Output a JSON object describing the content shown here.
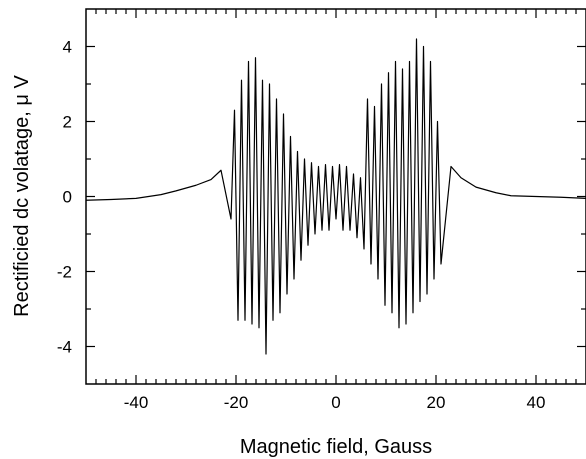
{
  "chart_data": {
    "type": "line",
    "title": "",
    "xlabel": "Magnetic field, Gauss",
    "ylabel": "Rectificied dc volatage,  μ V",
    "xlim": [
      -50,
      50
    ],
    "ylim": [
      -5,
      5
    ],
    "x_ticks": [
      -40,
      -20,
      0,
      20,
      40
    ],
    "x_tick_labels": [
      "-40",
      "-20",
      "0",
      "20",
      "40"
    ],
    "y_ticks": [
      -4,
      -2,
      0,
      2,
      4
    ],
    "y_tick_labels": [
      "-4",
      "-2",
      "0",
      "2",
      "4"
    ],
    "grid": false,
    "line_color": "#000000",
    "series": [
      {
        "x": [
          -50,
          -45,
          -40,
          -35,
          -32,
          -28,
          -25,
          -23,
          -21,
          -20.3,
          -19.6,
          -18.9,
          -18.2,
          -17.5,
          -16.8,
          -16.1,
          -15.4,
          -14.7,
          -14.0,
          -13.3,
          -12.6,
          -11.9,
          -11.2,
          -10.5,
          -9.8,
          -9.1,
          -8.4,
          -7.7,
          -7.0,
          -6.3,
          -5.6,
          -4.9,
          -4.2,
          -3.5,
          -2.8,
          -2.1,
          -1.4,
          -0.7,
          0.0,
          0.7,
          1.4,
          2.1,
          2.8,
          3.5,
          4.2,
          4.9,
          5.6,
          6.3,
          7.0,
          7.7,
          8.4,
          9.1,
          9.8,
          10.5,
          11.2,
          11.9,
          12.6,
          13.3,
          14.0,
          14.7,
          15.4,
          16.1,
          16.8,
          17.5,
          18.2,
          18.9,
          19.6,
          20.3,
          21,
          23,
          25,
          28,
          32,
          35,
          40,
          45,
          50
        ],
        "y": [
          -0.1,
          -0.08,
          -0.05,
          0.05,
          0.15,
          0.3,
          0.45,
          0.7,
          -0.6,
          2.3,
          -3.3,
          3.1,
          -3.3,
          3.6,
          -3.4,
          3.7,
          -3.5,
          3.1,
          -4.2,
          3.0,
          -3.3,
          2.6,
          -3.1,
          2.2,
          -2.6,
          1.6,
          -2.2,
          1.2,
          -1.7,
          1.0,
          -1.3,
          0.9,
          -1.0,
          0.8,
          -0.9,
          0.85,
          -0.9,
          0.8,
          -0.6,
          0.85,
          -0.9,
          0.8,
          -0.9,
          0.6,
          -1.1,
          0.5,
          -1.4,
          2.6,
          -1.8,
          2.4,
          -2.2,
          3.0,
          -2.9,
          3.3,
          -3.1,
          3.6,
          -3.5,
          3.4,
          -3.4,
          3.6,
          -3.1,
          4.2,
          -2.8,
          4.0,
          -2.6,
          3.6,
          -2.2,
          2.0,
          -1.8,
          0.8,
          0.5,
          0.25,
          0.1,
          0.02,
          0.0,
          -0.02,
          -0.05
        ]
      }
    ]
  }
}
